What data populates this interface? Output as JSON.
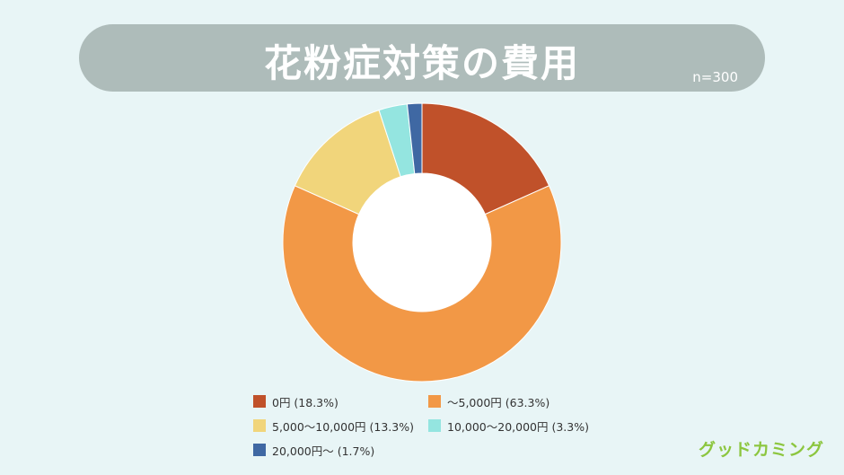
{
  "header": {
    "title": "花粉症対策の費用",
    "sample_size": "n=300"
  },
  "chart_data": {
    "type": "pie",
    "style": "donut",
    "title": "花粉症対策の費用",
    "categories": [
      "0円",
      "〜5,000円",
      "5,000〜10,000円",
      "10,000〜20,000円",
      "20,000円〜"
    ],
    "values": [
      18.3,
      63.3,
      13.3,
      3.3,
      1.7
    ],
    "colors": [
      "#c0512a",
      "#f29846",
      "#f1d57b",
      "#94e5e0",
      "#3f68a3"
    ],
    "legend": [
      {
        "label": "0円 (18.3%)",
        "color": "#c0512a"
      },
      {
        "label": "〜5,000円 (63.3%)",
        "color": "#f29846"
      },
      {
        "label": "5,000〜10,000円 (13.3%)",
        "color": "#f1d57b"
      },
      {
        "label": "10,000〜20,000円 (3.3%)",
        "color": "#94e5e0"
      },
      {
        "label": "20,000円〜 (1.7%)",
        "color": "#3f68a3"
      }
    ],
    "legend_position": "bottom"
  },
  "brand": {
    "logo_text": "グッドカミング",
    "color": "#8cc63f"
  }
}
